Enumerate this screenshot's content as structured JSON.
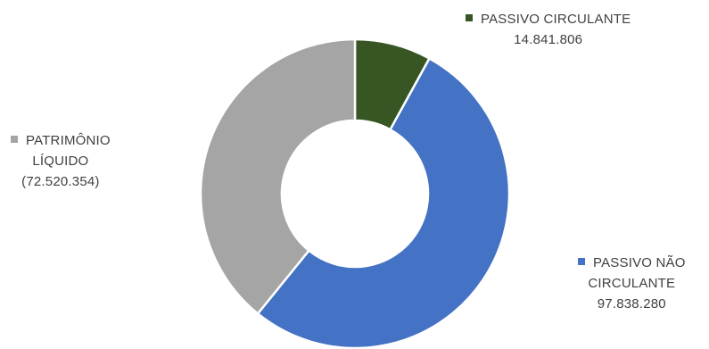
{
  "chart_data": {
    "type": "pie",
    "donut": true,
    "categories": [
      "PASSIVO CIRCULANTE",
      "PASSIVO NÃO CIRCULANTE",
      "PATRIMÔNIO LÍQUIDO"
    ],
    "values": [
      14841806,
      97838280,
      -72520354
    ],
    "slice_sizes": [
      14841806,
      97838280,
      72520354
    ],
    "colors": [
      "#375623",
      "#4472C4",
      "#A5A5A5"
    ],
    "start_at": "12 o'clock, clockwise",
    "legend": "data labels beside slices",
    "labels": {
      "passivo_circulante": {
        "name": "PASSIVO CIRCULANTE",
        "value": "14.841.806"
      },
      "passivo_nao_circulante": {
        "name_line1": "PASSIVO NÃO",
        "name_line2": "CIRCULANTE",
        "value": "97.838.280"
      },
      "patrimonio_liquido": {
        "name_line1": "PATRIMÔNIO",
        "name_line2": "LÍQUIDO",
        "value": "(72.520.354)"
      }
    }
  }
}
